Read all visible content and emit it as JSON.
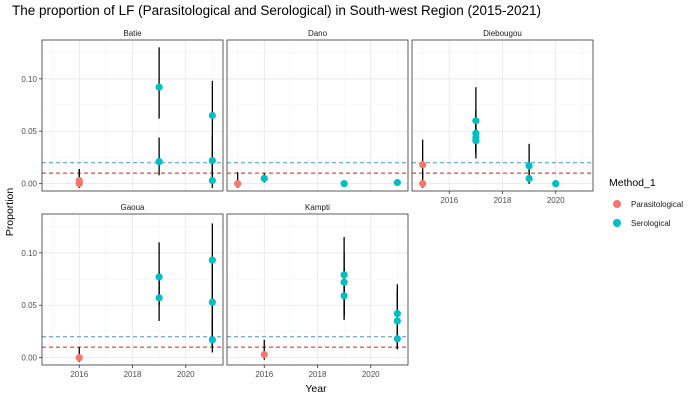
{
  "chart_data": {
    "type": "scatter",
    "title": "The proportion of LF (Parasitological and Serological) in South-west Region (2015-2021)",
    "xlabel": "Year",
    "ylabel": "Proportion",
    "xlim": [
      2014.6,
      2021.4
    ],
    "ylim": [
      -0.007,
      0.137
    ],
    "x_ticks": [
      2016,
      2018,
      2020
    ],
    "x_tick_labels": [
      "2016",
      "2018",
      "2020"
    ],
    "y_ticks": [
      0,
      0.05,
      0.1
    ],
    "y_tick_labels": [
      "0.00",
      "0.05",
      "0.10"
    ],
    "reference_lines": [
      {
        "y": 0.01,
        "color": "#E41A1C",
        "style": "dashed"
      },
      {
        "y": 0.02,
        "color": "#4A90C8",
        "style": "dashed"
      }
    ],
    "grid": true,
    "legend": {
      "title": "Method_1",
      "position": "right",
      "entries": [
        {
          "label": "Parasitological",
          "color": "#F8766D"
        },
        {
          "label": "Serological",
          "color": "#00BFC4"
        }
      ]
    },
    "facets": [
      {
        "name": "Batie",
        "points": [
          {
            "x": 2016,
            "y": 0.0,
            "lo": -0.004,
            "hi": 0.014,
            "method": "Parasitological"
          },
          {
            "x": 2016,
            "y": 0.003,
            "lo": -0.004,
            "hi": 0.014,
            "method": "Parasitological"
          },
          {
            "x": 2019,
            "y": 0.092,
            "lo": 0.062,
            "hi": 0.13,
            "method": "Serological"
          },
          {
            "x": 2019,
            "y": 0.021,
            "lo": 0.008,
            "hi": 0.044,
            "method": "Serological"
          },
          {
            "x": 2021,
            "y": 0.065,
            "lo": 0.01,
            "hi": 0.098,
            "method": "Serological"
          },
          {
            "x": 2021,
            "y": 0.022,
            "lo": 0.005,
            "hi": 0.045,
            "method": "Serological"
          },
          {
            "x": 2021,
            "y": 0.003,
            "lo": -0.004,
            "hi": 0.02,
            "method": "Serological"
          }
        ]
      },
      {
        "name": "Dano",
        "points": [
          {
            "x": 2015,
            "y": 0.0,
            "lo": -0.004,
            "hi": 0.011,
            "method": "Parasitological"
          },
          {
            "x": 2016,
            "y": 0.005,
            "lo": 0.001,
            "hi": 0.01,
            "method": "Serological"
          },
          {
            "x": 2019,
            "y": 0.0,
            "lo": -0.002,
            "hi": 0.002,
            "method": "Serological"
          },
          {
            "x": 2021,
            "y": 0.001,
            "lo": -0.001,
            "hi": 0.003,
            "method": "Serological"
          }
        ]
      },
      {
        "name": "Diebougou",
        "points": [
          {
            "x": 2015,
            "y": 0.0,
            "lo": -0.004,
            "hi": 0.012,
            "method": "Parasitological"
          },
          {
            "x": 2015,
            "y": 0.018,
            "lo": 0.005,
            "hi": 0.042,
            "method": "Parasitological"
          },
          {
            "x": 2017,
            "y": 0.06,
            "lo": 0.024,
            "hi": 0.092,
            "method": "Serological"
          },
          {
            "x": 2017,
            "y": 0.048,
            "lo": 0.03,
            "hi": 0.07,
            "method": "Serological"
          },
          {
            "x": 2017,
            "y": 0.044,
            "lo": 0.03,
            "hi": 0.065,
            "method": "Serological"
          },
          {
            "x": 2017,
            "y": 0.041,
            "lo": 0.028,
            "hi": 0.06,
            "method": "Serological"
          },
          {
            "x": 2019,
            "y": 0.017,
            "lo": 0.0,
            "hi": 0.038,
            "method": "Serological"
          },
          {
            "x": 2019,
            "y": 0.005,
            "lo": 0.0,
            "hi": 0.02,
            "method": "Serological"
          },
          {
            "x": 2020,
            "y": 0.0,
            "lo": -0.002,
            "hi": 0.002,
            "method": "Serological"
          }
        ]
      },
      {
        "name": "Gaoua",
        "points": [
          {
            "x": 2016,
            "y": 0.0,
            "lo": -0.004,
            "hi": 0.01,
            "method": "Parasitological"
          },
          {
            "x": 2019,
            "y": 0.077,
            "lo": 0.05,
            "hi": 0.11,
            "method": "Serological"
          },
          {
            "x": 2019,
            "y": 0.057,
            "lo": 0.035,
            "hi": 0.082,
            "method": "Serological"
          },
          {
            "x": 2021,
            "y": 0.093,
            "lo": 0.01,
            "hi": 0.128,
            "method": "Serological"
          },
          {
            "x": 2021,
            "y": 0.053,
            "lo": 0.01,
            "hi": 0.09,
            "method": "Serological"
          },
          {
            "x": 2021,
            "y": 0.017,
            "lo": 0.005,
            "hi": 0.04,
            "method": "Serological"
          }
        ]
      },
      {
        "name": "Kampti",
        "points": [
          {
            "x": 2016,
            "y": 0.003,
            "lo": -0.002,
            "hi": 0.017,
            "method": "Parasitological"
          },
          {
            "x": 2019,
            "y": 0.079,
            "lo": 0.04,
            "hi": 0.115,
            "method": "Serological"
          },
          {
            "x": 2019,
            "y": 0.072,
            "lo": 0.04,
            "hi": 0.1,
            "method": "Serological"
          },
          {
            "x": 2019,
            "y": 0.059,
            "lo": 0.036,
            "hi": 0.085,
            "method": "Serological"
          },
          {
            "x": 2021,
            "y": 0.042,
            "lo": 0.008,
            "hi": 0.07,
            "method": "Serological"
          },
          {
            "x": 2021,
            "y": 0.035,
            "lo": 0.01,
            "hi": 0.065,
            "method": "Serological"
          },
          {
            "x": 2021,
            "y": 0.018,
            "lo": 0.008,
            "hi": 0.035,
            "method": "Serological"
          }
        ]
      }
    ]
  }
}
